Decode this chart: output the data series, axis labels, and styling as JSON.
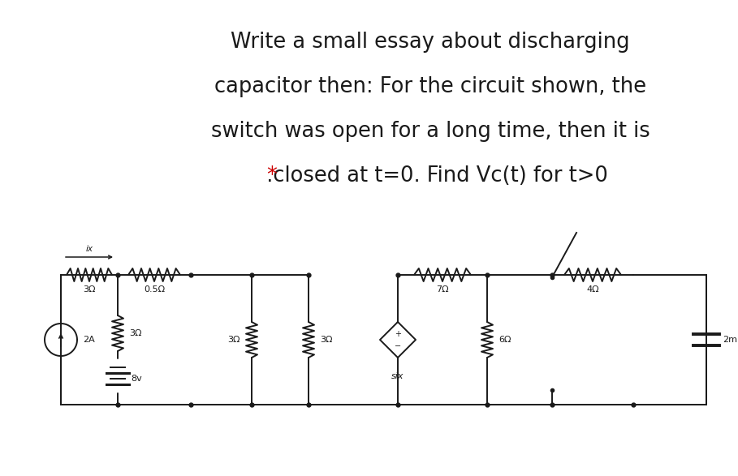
{
  "bg_color": "#ffffff",
  "text_color": "#1a1a1a",
  "circuit_color": "#1a1a1a",
  "red_color": "#cc0000",
  "title_lines": [
    "Write a small essay about discharging",
    "capacitor then: For the circuit shown, the",
    "switch was open for a long time, then it is",
    ".closed at t=0. Find Vc(t) for t>0"
  ],
  "title_fontsize": 18.5,
  "fig_width": 9.09,
  "fig_height": 5.87,
  "dpi": 100
}
